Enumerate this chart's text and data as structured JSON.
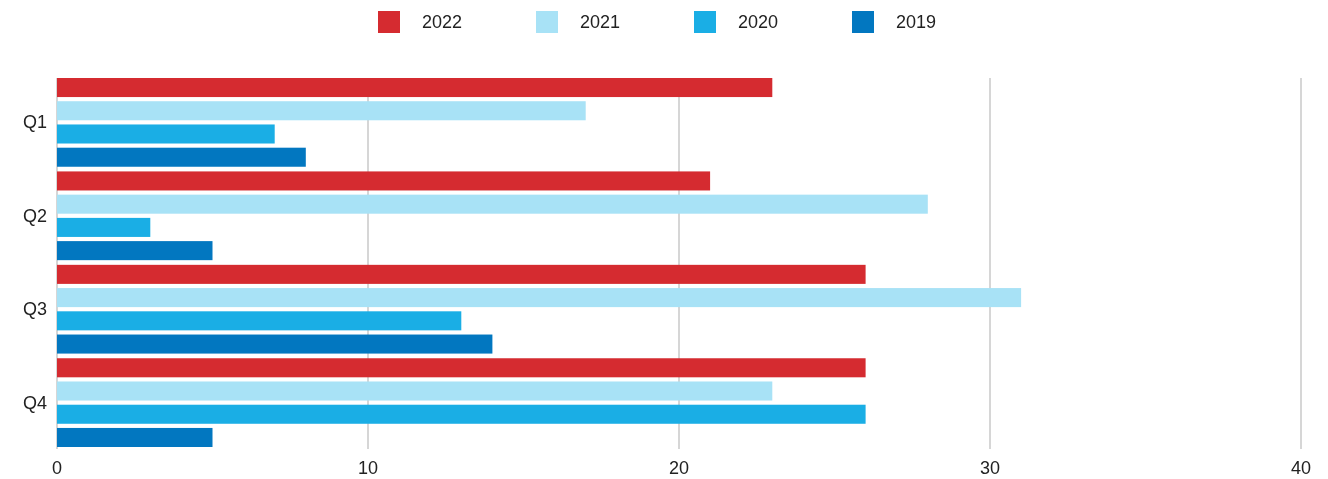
{
  "chart_data": {
    "type": "bar",
    "orientation": "horizontal",
    "categories": [
      "Q1",
      "Q2",
      "Q3",
      "Q4"
    ],
    "series": [
      {
        "name": "2022",
        "color": "#d52b30",
        "values": [
          23,
          21,
          26,
          26
        ]
      },
      {
        "name": "2021",
        "color": "#a8e2f6",
        "values": [
          17,
          28,
          31,
          23
        ]
      },
      {
        "name": "2020",
        "color": "#1aaee5",
        "values": [
          7,
          3,
          13,
          26
        ]
      },
      {
        "name": "2019",
        "color": "#0277c0",
        "values": [
          8,
          5,
          14,
          5
        ]
      }
    ],
    "xlim": [
      0,
      40
    ],
    "xticks": [
      0,
      10,
      20,
      30,
      40
    ],
    "grid": "x",
    "legend": "top"
  }
}
